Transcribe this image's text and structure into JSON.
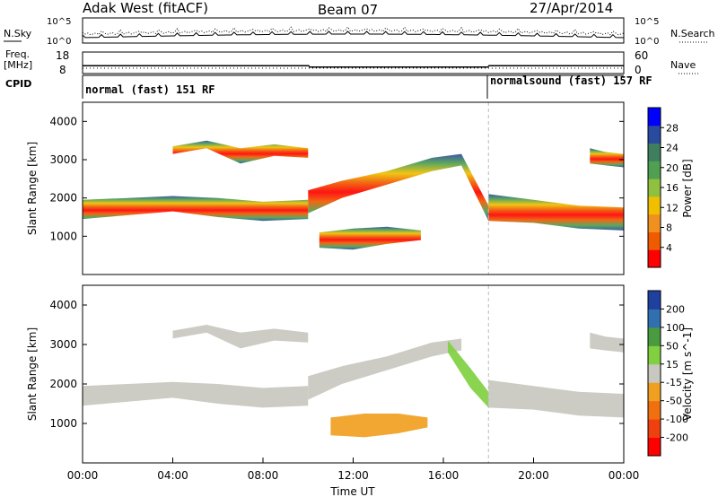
{
  "header": {
    "title": "Adak West (fitACF)",
    "beam": "Beam 07",
    "date": "27/Apr/2014"
  },
  "colors": {
    "power_scale": [
      "#0000ff",
      "#2a4aa0",
      "#3f7f5f",
      "#4fa050",
      "#90c040",
      "#f0c000",
      "#f09020",
      "#f05a00",
      "#ff0000"
    ],
    "velocity_scale": [
      "#2040a0",
      "#3070b0",
      "#4a9a40",
      "#80d040",
      "#c8c8c0",
      "#f0a020",
      "#f07010",
      "#f04010",
      "#ff0000"
    ]
  },
  "chart_data": [
    {
      "type": "line",
      "panel": "noise",
      "left_label": "N.Sky",
      "right_label": "N.Search",
      "left_ticks": [
        "10^5",
        "10^0"
      ],
      "right_ticks": [
        "10^5",
        "10^0"
      ]
    },
    {
      "type": "line",
      "panel": "frequency",
      "left_label_1": "Freq.",
      "left_label_2": "[MHz]",
      "left_ticks": [
        "18",
        "8"
      ],
      "right_label": "Nave",
      "right_ticks": [
        "60",
        "0"
      ],
      "freq_series": [
        {
          "x": [
            0,
            10.05
          ],
          "y": 11
        },
        {
          "x": [
            10.05,
            18.0
          ],
          "y": 10
        },
        {
          "x": [
            18.0,
            24.0
          ],
          "y": 11
        }
      ]
    },
    {
      "type": "table",
      "panel": "cpid",
      "label": "CPID",
      "segments": [
        {
          "start": 0,
          "end": 18.0,
          "name": "normal (fast) 151 RF"
        },
        {
          "start": 18.0,
          "end": 24.0,
          "name": "normalsound (fast) 157 RF"
        }
      ]
    },
    {
      "type": "heatmap",
      "panel": "power",
      "ylabel": "Slant Range [km]",
      "ylim": [
        0,
        4500
      ],
      "yticks": [
        1000,
        2000,
        3000,
        4000
      ],
      "colorbar_label": "Power [dB]",
      "colorbar_ticks": [
        "28",
        "24",
        "20",
        "16",
        "12",
        "8",
        "4"
      ],
      "bands": [
        {
          "x": [
            0.0,
            2.0,
            4.0,
            6.0,
            8.0,
            10.0
          ],
          "y_low": [
            1450,
            1550,
            1650,
            1500,
            1400,
            1450
          ],
          "y_high": [
            1950,
            2000,
            2050,
            2000,
            1900,
            1950
          ]
        },
        {
          "x": [
            4.0,
            5.5,
            7.0,
            8.5,
            10.0
          ],
          "y_low": [
            3150,
            3300,
            2900,
            3100,
            3050
          ],
          "y_high": [
            3350,
            3500,
            3300,
            3400,
            3300
          ]
        },
        {
          "x": [
            10.0,
            11.5,
            13.5,
            15.5,
            16.8,
            18.0
          ],
          "y_low": [
            1600,
            2000,
            2350,
            2700,
            2850,
            1400
          ],
          "y_high": [
            2200,
            2450,
            2700,
            3050,
            3150,
            1800
          ]
        },
        {
          "x": [
            10.5,
            12.0,
            13.5,
            15.0
          ],
          "y_low": [
            700,
            650,
            800,
            900
          ],
          "y_high": [
            1100,
            1200,
            1250,
            1150
          ]
        },
        {
          "x": [
            18.0,
            20.0,
            22.0,
            24.0
          ],
          "y_low": [
            1400,
            1350,
            1200,
            1150
          ],
          "y_high": [
            2100,
            1950,
            1800,
            1750
          ]
        },
        {
          "x": [
            22.5,
            23.2,
            24.0
          ],
          "y_low": [
            2900,
            2850,
            2800
          ],
          "y_high": [
            3300,
            3200,
            3150
          ]
        }
      ]
    },
    {
      "type": "heatmap",
      "panel": "velocity",
      "ylabel": "Slant Range [km]",
      "xlabel": "Time UT",
      "ylim": [
        0,
        4500
      ],
      "yticks": [
        1000,
        2000,
        3000,
        4000
      ],
      "xticks": [
        "00:00",
        "04:00",
        "08:00",
        "12:00",
        "16:00",
        "20:00",
        "00:00"
      ],
      "colorbar_label": "Velocity [m s^-1]",
      "colorbar_ticks": [
        "200",
        "100",
        "50",
        "15",
        "-15",
        "-50",
        "-100",
        "-200"
      ],
      "bands": [
        {
          "x": [
            0.0,
            2.0,
            4.0,
            6.0,
            8.0,
            10.0
          ],
          "y_low": [
            1450,
            1550,
            1650,
            1500,
            1400,
            1450
          ],
          "y_high": [
            1950,
            2000,
            2050,
            2000,
            1900,
            1950
          ],
          "color": "#c8c8c0"
        },
        {
          "x": [
            4.0,
            5.5,
            7.0,
            8.5,
            10.0
          ],
          "y_low": [
            3150,
            3300,
            2900,
            3100,
            3050
          ],
          "y_high": [
            3350,
            3500,
            3300,
            3400,
            3300
          ],
          "color": "#c8c8c0"
        },
        {
          "x": [
            10.0,
            11.5,
            13.5,
            15.5,
            16.8
          ],
          "y_low": [
            1600,
            2000,
            2350,
            2700,
            2850
          ],
          "y_high": [
            2200,
            2450,
            2700,
            3050,
            3150
          ],
          "color": "#c8c8c0"
        },
        {
          "x": [
            16.2,
            17.2,
            18.0
          ],
          "y_low": [
            2800,
            1900,
            1400
          ],
          "y_high": [
            3100,
            2400,
            1800
          ],
          "color": "#80d040"
        },
        {
          "x": [
            11.0,
            12.5,
            14.0,
            15.3
          ],
          "y_low": [
            700,
            650,
            750,
            900
          ],
          "y_high": [
            1150,
            1250,
            1250,
            1150
          ],
          "color": "#f0a020"
        },
        {
          "x": [
            18.0,
            20.0,
            22.0,
            24.0
          ],
          "y_low": [
            1400,
            1350,
            1200,
            1150
          ],
          "y_high": [
            2100,
            1950,
            1800,
            1750
          ],
          "color": "#c8c8c0"
        },
        {
          "x": [
            22.5,
            23.2,
            24.0
          ],
          "y_low": [
            2900,
            2850,
            2800
          ],
          "y_high": [
            3300,
            3200,
            3150
          ],
          "color": "#c8c8c0"
        }
      ]
    }
  ]
}
